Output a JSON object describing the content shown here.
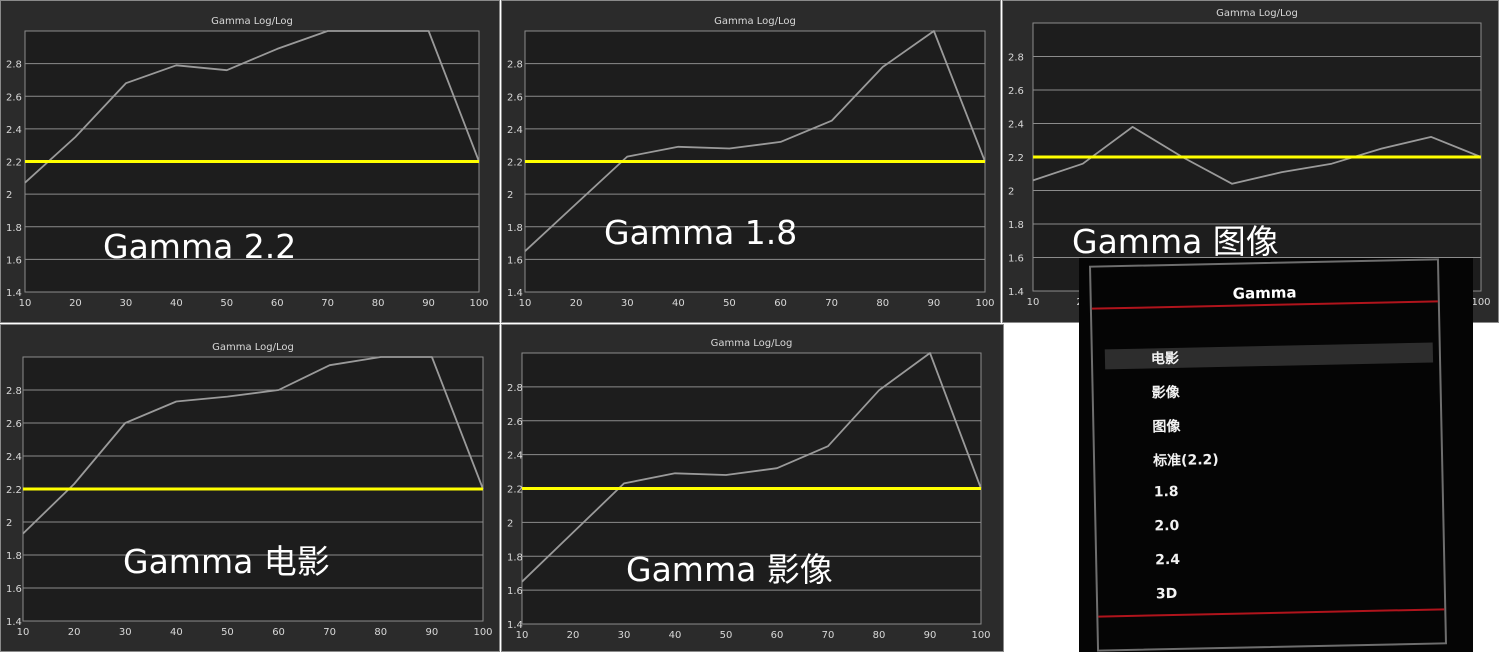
{
  "chart_data": [
    {
      "type": "line",
      "title": "Gamma Log/Log",
      "overlay_label": "Gamma 2.2",
      "x": [
        10,
        20,
        30,
        40,
        50,
        60,
        70,
        80,
        90,
        100
      ],
      "ylim": [
        1.4,
        3.0
      ],
      "yticks": [
        "1.4",
        "1.6",
        "1.8",
        "2",
        "2.2",
        "2.4",
        "2.6",
        "2.8"
      ],
      "grid": true,
      "series": [
        {
          "values": [
            2.07,
            2.35,
            2.68,
            2.79,
            2.76,
            2.89,
            3.0,
            3.0,
            3.0,
            2.2
          ],
          "color": "#9a9a9a"
        },
        {
          "values": [
            2.2,
            2.2,
            2.2,
            2.2,
            2.2,
            2.2,
            2.2,
            2.2,
            2.2,
            2.2
          ],
          "color": "#ffff00"
        }
      ]
    },
    {
      "type": "line",
      "title": "Gamma Log/Log",
      "overlay_label": "Gamma 1.8",
      "x": [
        10,
        20,
        30,
        40,
        50,
        60,
        70,
        80,
        90,
        100
      ],
      "ylim": [
        1.4,
        3.0
      ],
      "yticks": [
        "1.4",
        "1.6",
        "1.8",
        "2",
        "2.2",
        "2.4",
        "2.6",
        "2.8"
      ],
      "grid": true,
      "series": [
        {
          "values": [
            1.65,
            1.94,
            2.23,
            2.29,
            2.28,
            2.32,
            2.45,
            2.78,
            3.0,
            2.2
          ],
          "color": "#9a9a9a"
        },
        {
          "values": [
            2.2,
            2.2,
            2.2,
            2.2,
            2.2,
            2.2,
            2.2,
            2.2,
            2.2,
            2.2
          ],
          "color": "#ffff00"
        }
      ]
    },
    {
      "type": "line",
      "title": "Gamma Log/Log",
      "overlay_label": "Gamma 图像",
      "x": [
        10,
        20,
        30,
        40,
        50,
        60,
        70,
        80,
        90,
        100
      ],
      "ylim": [
        1.4,
        3.0
      ],
      "yticks": [
        "1.4",
        "1.6",
        "1.8",
        "2",
        "2.2",
        "2.4",
        "2.6",
        "2.8"
      ],
      "grid": true,
      "series": [
        {
          "values": [
            2.06,
            2.16,
            2.38,
            2.2,
            2.04,
            2.11,
            2.16,
            2.25,
            2.32,
            2.2
          ],
          "color": "#9a9a9a"
        },
        {
          "values": [
            2.2,
            2.2,
            2.2,
            2.2,
            2.2,
            2.2,
            2.2,
            2.2,
            2.2,
            2.2
          ],
          "color": "#ffff00"
        }
      ]
    },
    {
      "type": "line",
      "title": "Gamma Log/Log",
      "overlay_label": "Gamma 电影",
      "x": [
        10,
        20,
        30,
        40,
        50,
        60,
        70,
        80,
        90,
        100
      ],
      "ylim": [
        1.4,
        3.0
      ],
      "yticks": [
        "1.4",
        "1.6",
        "1.8",
        "2",
        "2.2",
        "2.4",
        "2.6",
        "2.8"
      ],
      "grid": true,
      "series": [
        {
          "values": [
            1.93,
            2.23,
            2.6,
            2.73,
            2.76,
            2.8,
            2.95,
            3.0,
            3.0,
            2.2
          ],
          "color": "#9a9a9a"
        },
        {
          "values": [
            2.2,
            2.2,
            2.2,
            2.2,
            2.2,
            2.2,
            2.2,
            2.2,
            2.2,
            2.2
          ],
          "color": "#ffff00"
        }
      ]
    },
    {
      "type": "line",
      "title": "Gamma Log/Log",
      "overlay_label": "Gamma 影像",
      "x": [
        10,
        20,
        30,
        40,
        50,
        60,
        70,
        80,
        90,
        100
      ],
      "ylim": [
        1.4,
        3.0
      ],
      "yticks": [
        "1.4",
        "1.6",
        "1.8",
        "2",
        "2.2",
        "2.4",
        "2.6",
        "2.8"
      ],
      "grid": true,
      "series": [
        {
          "values": [
            1.65,
            1.94,
            2.23,
            2.29,
            2.28,
            2.32,
            2.45,
            2.78,
            3.0,
            2.2
          ],
          "color": "#9a9a9a"
        },
        {
          "values": [
            2.2,
            2.2,
            2.2,
            2.2,
            2.2,
            2.2,
            2.2,
            2.2,
            2.2,
            2.2
          ],
          "color": "#ffff00"
        }
      ]
    }
  ],
  "osd_menu": {
    "title": "Gamma",
    "items": [
      "电影",
      "影像",
      "图像",
      "标准(2.2)",
      "1.8",
      "2.0",
      "2.4",
      "3D"
    ],
    "selected_index": 0,
    "accent_color": "#b0141c"
  }
}
